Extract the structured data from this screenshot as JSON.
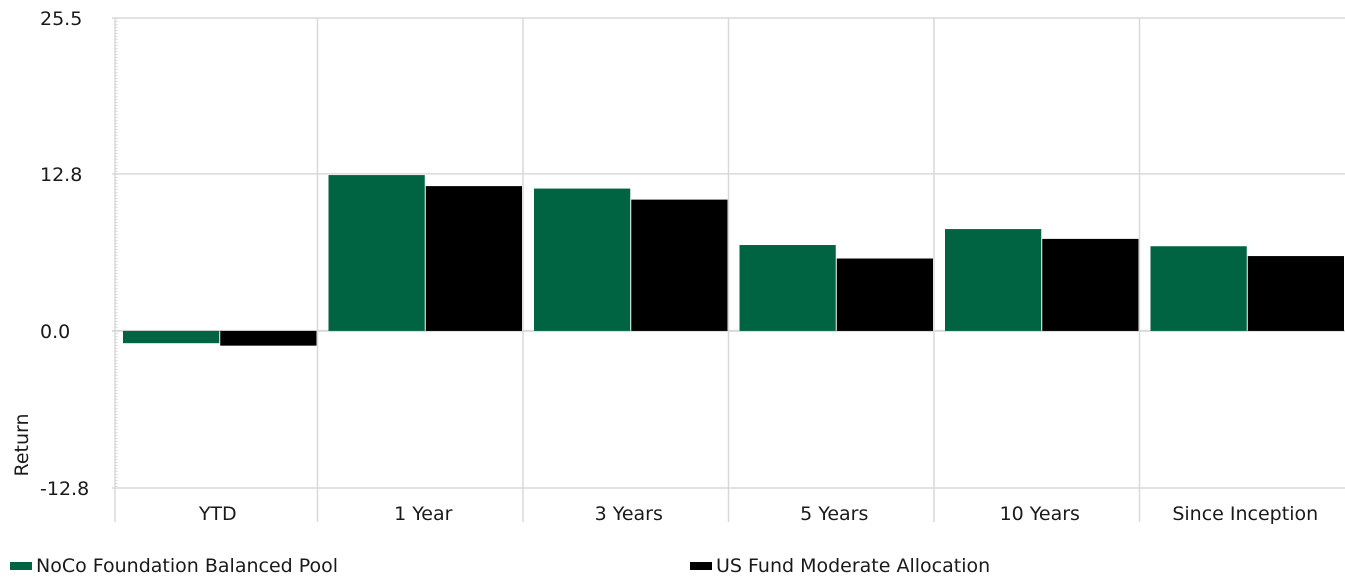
{
  "chart_data": {
    "type": "bar",
    "title": "",
    "xlabel": "",
    "ylabel": "Return",
    "categories": [
      "YTD",
      "1 Year",
      "3 Years",
      "5 Years",
      "10 Years",
      "Since Inception"
    ],
    "series": [
      {
        "name": "NoCo Foundation Balanced Pool",
        "color": "#006443",
        "values": [
          -1.0,
          12.7,
          11.6,
          7.0,
          8.3,
          6.9
        ]
      },
      {
        "name": "US Fund Moderate Allocation",
        "color": "#000000",
        "values": [
          -1.2,
          11.8,
          10.7,
          5.9,
          7.5,
          6.1
        ]
      }
    ],
    "ylim": [
      -12.8,
      25.5
    ],
    "yticks": [
      "-12.8",
      "0.0",
      "12.8",
      "25.5"
    ],
    "grid": true,
    "legend": "bottom"
  },
  "legend": {
    "items": [
      {
        "label": "NoCo Foundation Balanced Pool",
        "color": "#006443"
      },
      {
        "label": "US Fund Moderate Allocation",
        "color": "#000000"
      }
    ]
  }
}
